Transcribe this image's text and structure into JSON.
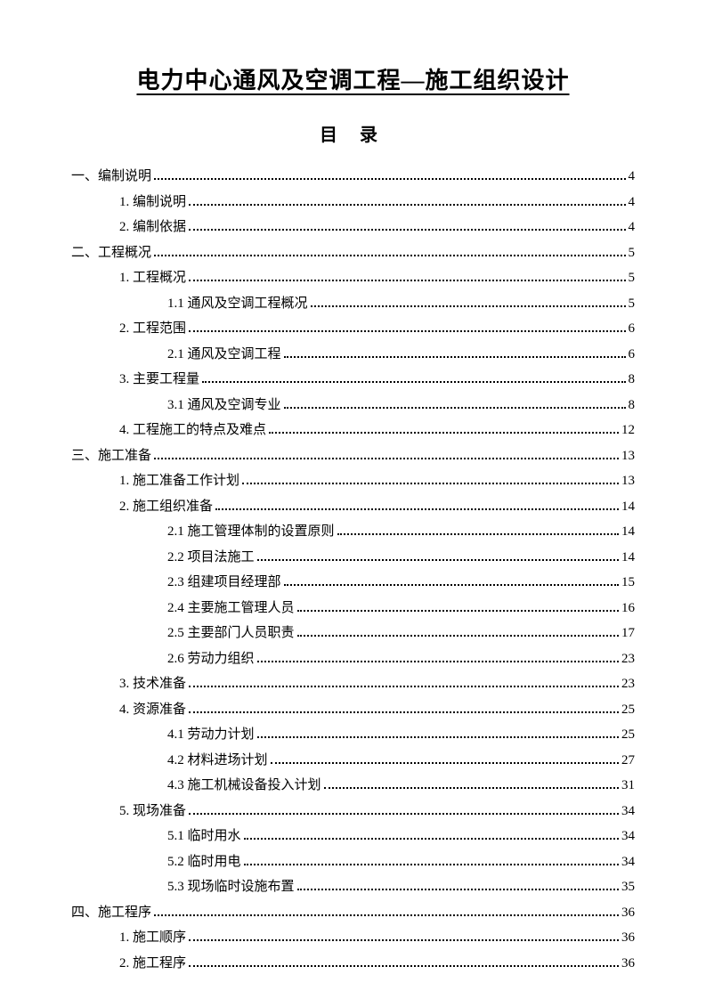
{
  "title": "电力中心通风及空调工程—施工组织设计",
  "toc_heading": "目 录",
  "entries": [
    {
      "level": 0,
      "label": "一、编制说明",
      "page": "4"
    },
    {
      "level": 1,
      "label": "1. 编制说明",
      "page": "4"
    },
    {
      "level": 1,
      "label": "2. 编制依据",
      "page": "4"
    },
    {
      "level": 0,
      "label": "二、工程概况",
      "page": "5"
    },
    {
      "level": 1,
      "label": "1. 工程概况",
      "page": "5"
    },
    {
      "level": 2,
      "label": "1.1 通风及空调工程概况",
      "page": "5"
    },
    {
      "level": 1,
      "label": "2. 工程范围",
      "page": "6"
    },
    {
      "level": 2,
      "label": "2.1 通风及空调工程",
      "page": "6"
    },
    {
      "level": 1,
      "label": "3. 主要工程量",
      "page": "8"
    },
    {
      "level": 2,
      "label": "3.1 通风及空调专业",
      "page": "8"
    },
    {
      "level": 1,
      "label": "4. 工程施工的特点及难点",
      "page": "12"
    },
    {
      "level": 0,
      "label": "三、施工准备",
      "page": "13"
    },
    {
      "level": 1,
      "label": "1. 施工准备工作计划",
      "page": "13"
    },
    {
      "level": 1,
      "label": "2. 施工组织准备",
      "page": "14"
    },
    {
      "level": 2,
      "label": "2.1 施工管理体制的设置原则",
      "page": "14"
    },
    {
      "level": 2,
      "label": "2.2 项目法施工",
      "page": "14"
    },
    {
      "level": 2,
      "label": "2.3 组建项目经理部",
      "page": "15"
    },
    {
      "level": 2,
      "label": "2.4 主要施工管理人员",
      "page": "16"
    },
    {
      "level": 2,
      "label": "2.5 主要部门人员职责",
      "page": "17"
    },
    {
      "level": 2,
      "label": "2.6 劳动力组织",
      "page": "23"
    },
    {
      "level": 1,
      "label": "3. 技术准备",
      "page": "23"
    },
    {
      "level": 1,
      "label": "4. 资源准备",
      "page": "25"
    },
    {
      "level": 2,
      "label": "4.1 劳动力计划",
      "page": "25"
    },
    {
      "level": 2,
      "label": "4.2 材料进场计划",
      "page": "27"
    },
    {
      "level": 2,
      "label": "4.3 施工机械设备投入计划",
      "page": "31"
    },
    {
      "level": 1,
      "label": "5. 现场准备",
      "page": "34"
    },
    {
      "level": 2,
      "label": "5.1 临时用水",
      "page": "34"
    },
    {
      "level": 2,
      "label": "5.2 临时用电",
      "page": "34"
    },
    {
      "level": 2,
      "label": "5.3 现场临时设施布置",
      "page": "35"
    },
    {
      "level": 0,
      "label": "四、施工程序",
      "page": "36"
    },
    {
      "level": 1,
      "label": "1. 施工顺序",
      "page": "36"
    },
    {
      "level": 1,
      "label": "2. 施工程序",
      "page": "36"
    }
  ]
}
